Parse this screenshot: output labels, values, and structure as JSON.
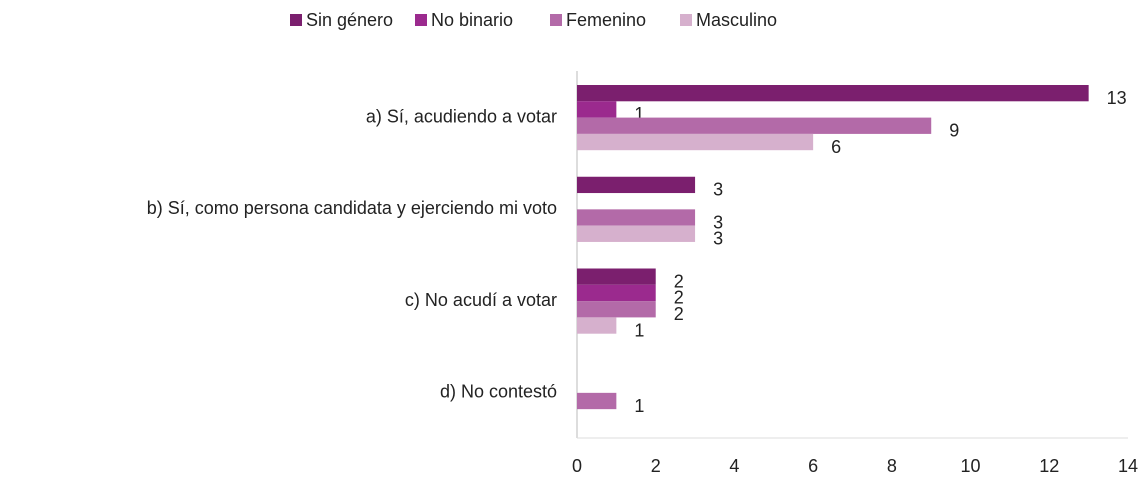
{
  "chart_data": {
    "type": "hbar",
    "categories": [
      "a) Sí, acudiendo a votar",
      "b) Sí, como persona candidata y ejerciendo mi voto",
      "c) No acudí a votar",
      "d) No contestó"
    ],
    "series": [
      {
        "name": "Sin género",
        "color": "#7b1f6e",
        "values": [
          13,
          3,
          2,
          null
        ]
      },
      {
        "name": "No binario",
        "color": "#9b2a8e",
        "values": [
          1,
          null,
          2,
          null
        ]
      },
      {
        "name": "Femenino",
        "color": "#b36aa8",
        "values": [
          9,
          3,
          2,
          1
        ]
      },
      {
        "name": "Masculino",
        "color": "#d6b0cd",
        "values": [
          6,
          3,
          1,
          null
        ]
      }
    ],
    "xlim": [
      0,
      14
    ],
    "xticks": [
      0,
      2,
      4,
      6,
      8,
      10,
      12,
      14
    ],
    "legend": "top"
  }
}
